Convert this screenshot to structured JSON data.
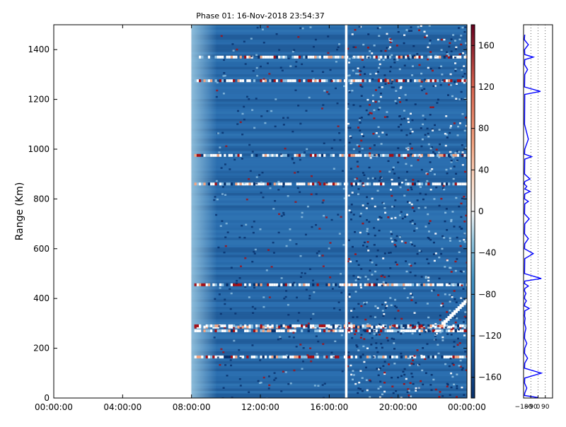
{
  "chart_data": [
    {
      "type": "heatmap",
      "title": "Phase 01: 16-Nov-2018 23:54:37",
      "ylabel": "Range (Km)",
      "xlabel": "",
      "x_ticks": [
        "00:00:00",
        "04:00:00",
        "08:00:00",
        "12:00:00",
        "16:00:00",
        "20:00:00",
        "00:00:00"
      ],
      "x_range_hours": [
        0,
        24
      ],
      "data_start_hour": 8.0,
      "gap_hour": 17.0,
      "y_ticks": [
        0,
        200,
        400,
        600,
        800,
        1000,
        1200,
        1400
      ],
      "ylim": [
        0,
        1500
      ],
      "colorbar": {
        "colormap": "RdBu_r",
        "ticks": [
          160,
          120,
          80,
          40,
          0,
          -40,
          -80,
          -120,
          -160
        ],
        "range": [
          -180,
          180
        ]
      },
      "background_level": -150,
      "noisy_ranges_km": [
        165,
        270,
        285,
        290,
        455,
        860,
        975,
        1275,
        1370
      ],
      "trace_start": {
        "hour": 22.6,
        "km": 300
      },
      "trace_end": {
        "hour": 24.0,
        "km": 395
      },
      "grid": false,
      "colors": {
        "deep": "#08306b",
        "mid": "#2c6fb0",
        "light": "#8fbfe0",
        "white": "#ffffff",
        "red": "#a50f15",
        "salmon": "#f4a582"
      }
    },
    {
      "type": "line",
      "title": "",
      "xlabel": "",
      "ylabel": "",
      "x_ticks": [
        "-180",
        "-90",
        "0",
        "90"
      ],
      "xlim": [
        -180,
        180
      ],
      "ylim": [
        0,
        1500
      ],
      "grid": true,
      "series": [
        {
          "color": "#0000ff",
          "x": [
            -165,
            -170,
            -120,
            -168,
            -165,
            -60,
            -165,
            -168,
            -130,
            -165,
            -168,
            30,
            -165,
            -168,
            -120,
            -165,
            -168,
            -80,
            -165,
            -168,
            -100,
            -165,
            -170,
            -140,
            -165,
            -100,
            -165,
            -168,
            -120,
            -165,
            -168,
            -110,
            -165,
            -168,
            -120,
            -165,
            -168,
            -60,
            -165,
            -168,
            40,
            -165,
            -168,
            -120,
            -165,
            -168,
            -150,
            -165,
            -168,
            -145,
            -165,
            -168,
            -110,
            -165,
            -165,
            -168,
            -160,
            -165,
            -168,
            -150,
            -165,
            -168,
            -140,
            -165,
            -168,
            -130,
            -165,
            -168,
            40,
            -165,
            -168,
            -140,
            -165,
            -168,
            0
          ],
          "y": [
            1460,
            1440,
            1420,
            1400,
            1380,
            1370,
            1360,
            1340,
            1320,
            1300,
            1250,
            1232,
            1220,
            1100,
            1040,
            1000,
            980,
            970,
            960,
            900,
            880,
            870,
            860,
            850,
            840,
            830,
            820,
            800,
            790,
            780,
            740,
            720,
            700,
            660,
            640,
            620,
            600,
            580,
            560,
            500,
            480,
            470,
            460,
            450,
            440,
            430,
            420,
            410,
            400,
            390,
            380,
            370,
            360,
            350,
            340,
            330,
            320,
            310,
            300,
            280,
            260,
            240,
            220,
            200,
            180,
            160,
            140,
            120,
            100,
            80,
            60,
            40,
            20,
            10,
            2
          ]
        }
      ]
    }
  ]
}
